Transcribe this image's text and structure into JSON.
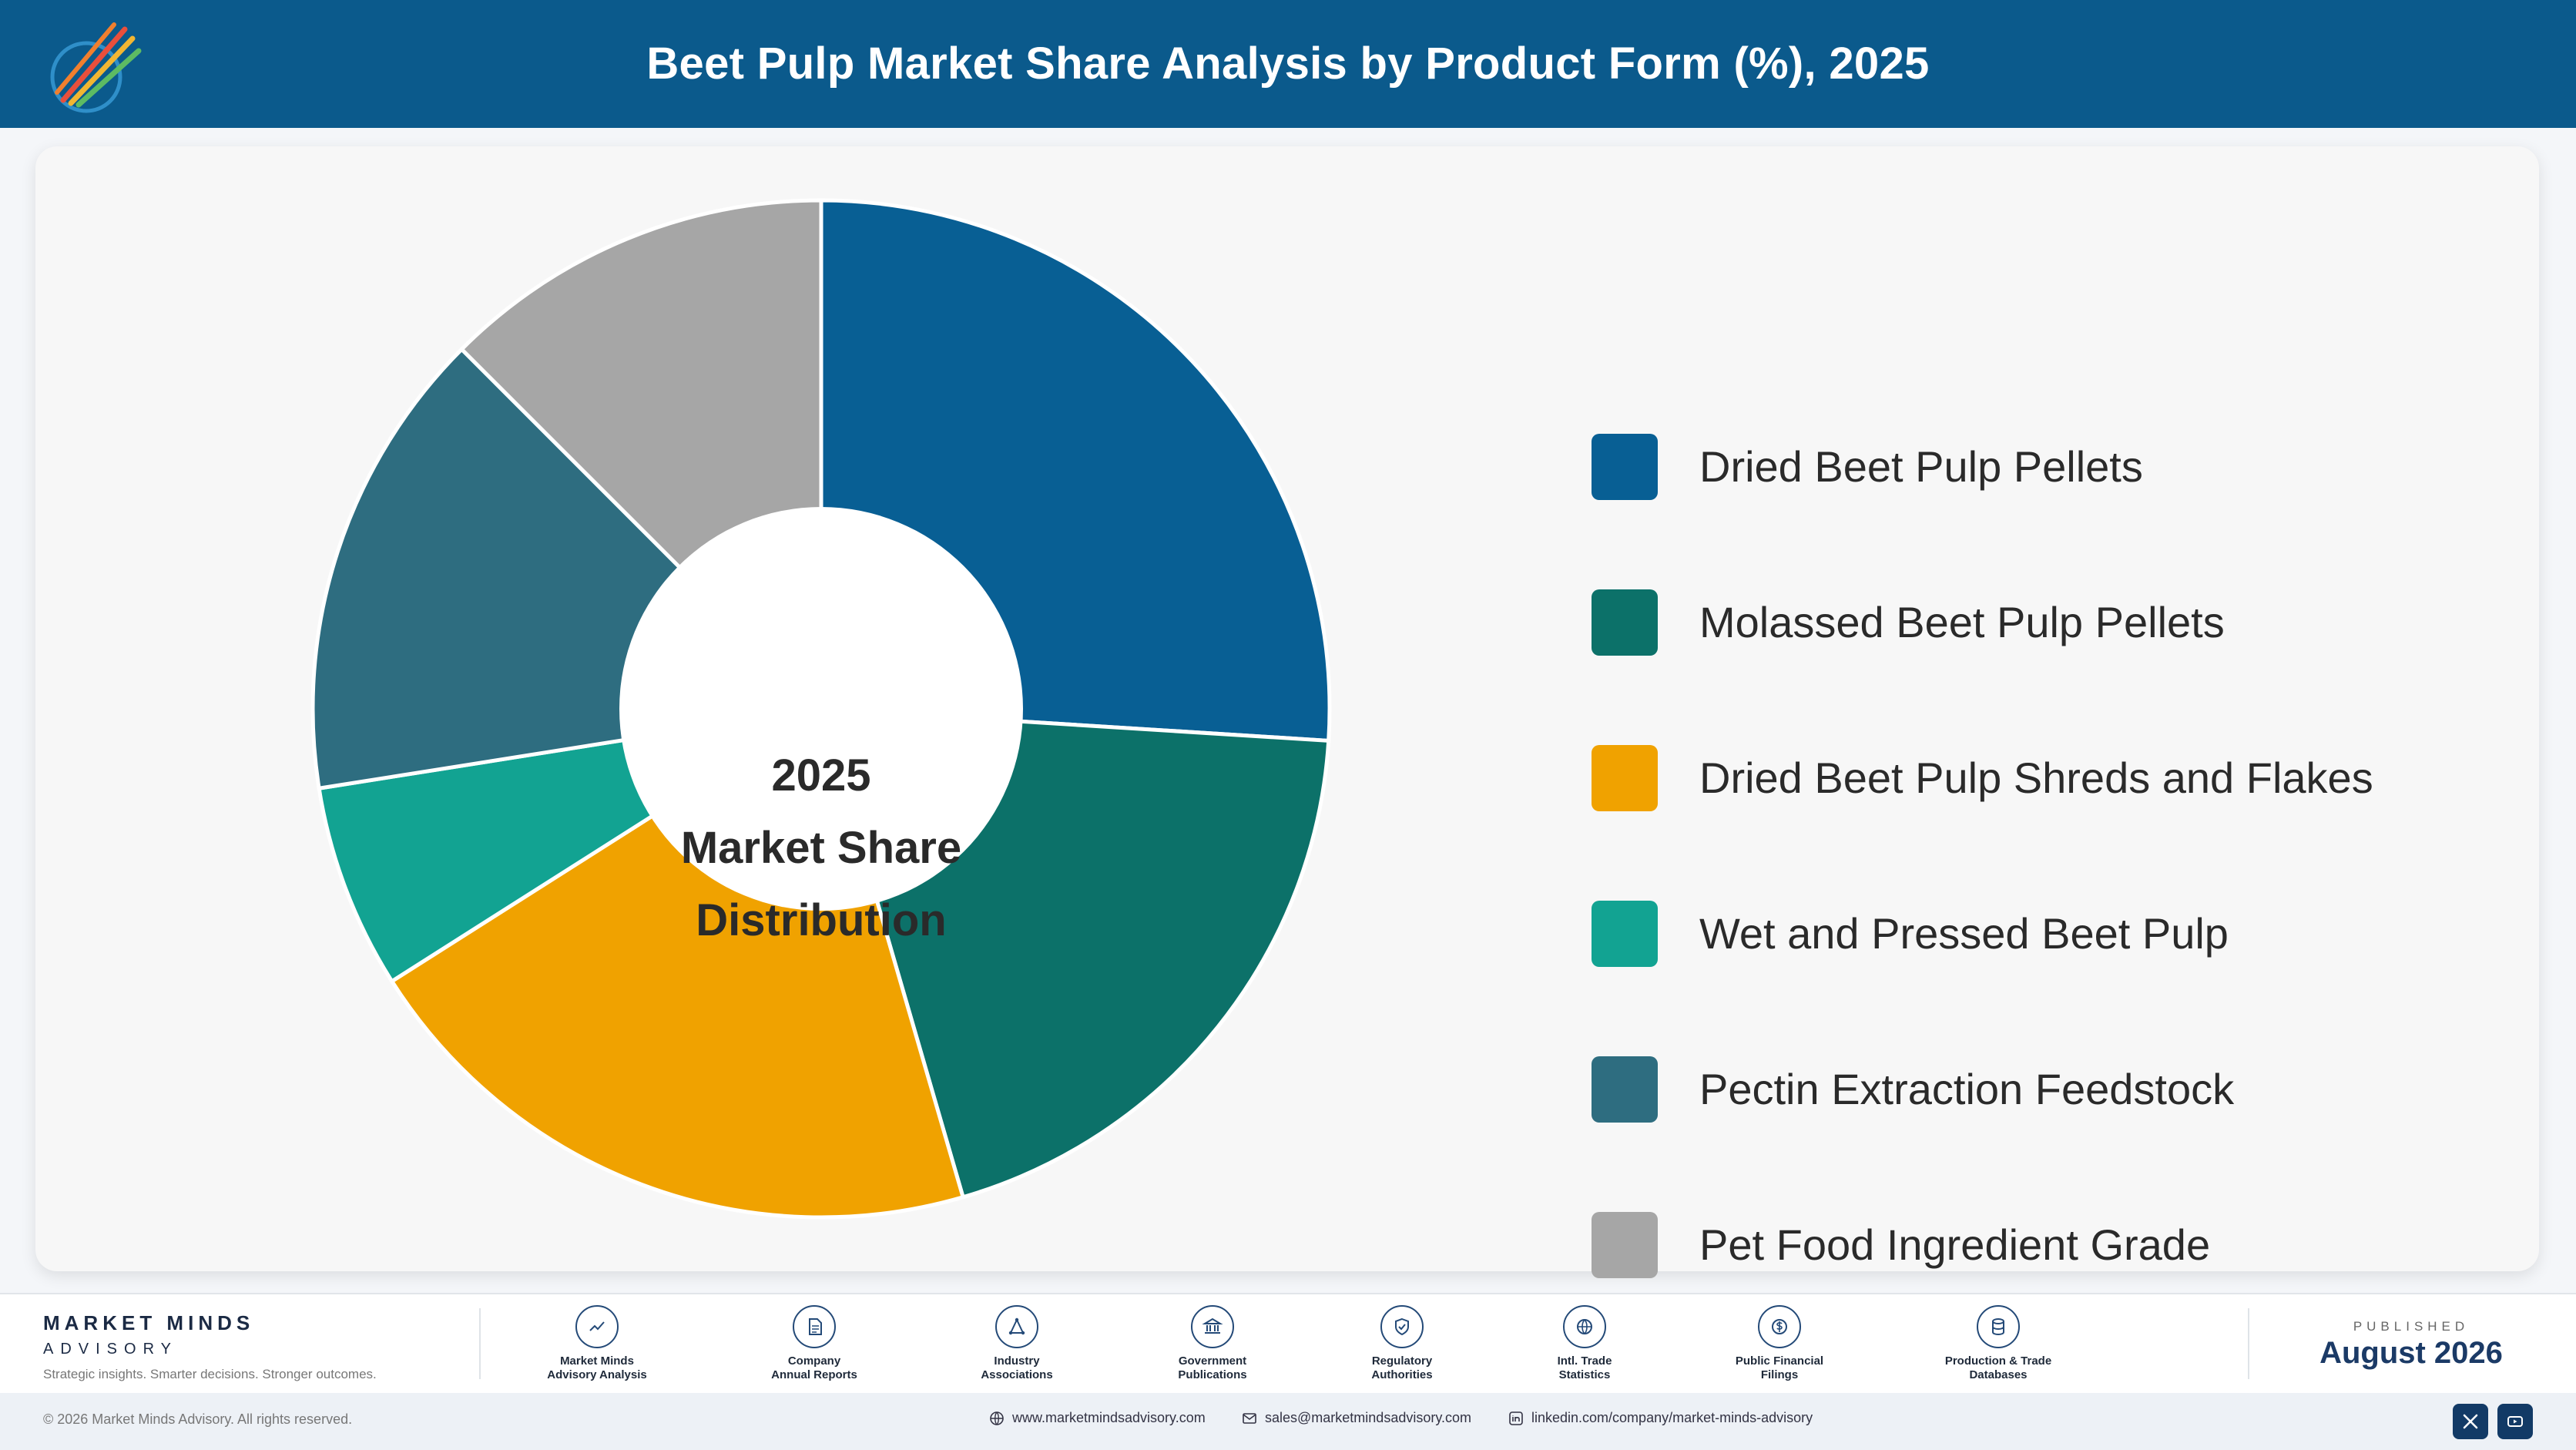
{
  "header": {
    "title": "Beet Pulp Market Share Analysis by Product Form (%), 2025",
    "logo_icon": "market-minds-logo"
  },
  "chart_data": {
    "type": "pie",
    "donut": true,
    "center_label": [
      "2025",
      "Market Share",
      "Distribution"
    ],
    "categories": [
      "Dried Beet Pulp Pellets",
      "Molassed Beet Pulp Pellets",
      "Dried Beet Pulp Shreds and Flakes",
      "Wet and Pressed Beet Pulp",
      "Pectin Extraction Feedstock",
      "Pet Food Ingredient Grade"
    ],
    "values": [
      26.0,
      19.5,
      20.5,
      6.5,
      15.0,
      12.5
    ],
    "colors": [
      "#085f94",
      "#0c7169",
      "#f0a200",
      "#12a392",
      "#2e6d80",
      "#a6a6a6"
    ],
    "legend_placement": "right"
  },
  "footer": {
    "brand_name": "MARKET MINDS",
    "brand_sub": "ADVISORY",
    "tagline": "Strategic insights. Smarter decisions. Stronger outcomes.",
    "sources": [
      {
        "label": "Market Minds\nAdvisory Analysis",
        "icon": "trend-line-icon"
      },
      {
        "label": "Company\nAnnual Reports",
        "icon": "document-icon"
      },
      {
        "label": "Industry\nAssociations",
        "icon": "network-icon"
      },
      {
        "label": "Government\nPublications",
        "icon": "government-building-icon"
      },
      {
        "label": "Regulatory\nAuthorities",
        "icon": "shield-check-icon"
      },
      {
        "label": "Intl. Trade\nStatistics",
        "icon": "globe-icon"
      },
      {
        "label": "Public Financial\nFilings",
        "icon": "currency-icon"
      },
      {
        "label": "Production & Trade\nDatabases",
        "icon": "database-icon"
      }
    ],
    "published_label": "PUBLISHED",
    "published_date": "August 2026",
    "copyright": "© 2026 Market Minds Advisory. All rights reserved.",
    "website": "www.marketmindsadvisory.com",
    "email": "sales@marketmindsadvisory.com",
    "linkedin": "linkedin.com/company/market-minds-advisory"
  }
}
